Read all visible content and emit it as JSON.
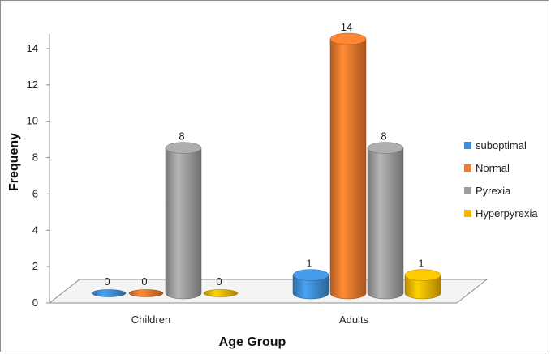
{
  "chart_data": {
    "type": "bar",
    "categories": [
      "Children",
      "Adults"
    ],
    "series": [
      {
        "name": "suboptimal",
        "values": [
          0,
          1
        ],
        "color": "#3f8fd6"
      },
      {
        "name": "Normal",
        "values": [
          0,
          14
        ],
        "color": "#f07a2e"
      },
      {
        "name": "Pyrexia",
        "values": [
          8,
          8
        ],
        "color": "#9e9e9e"
      },
      {
        "name": "Hyperpyrexia",
        "values": [
          0,
          1
        ],
        "color": "#f5b800"
      }
    ],
    "ylim": [
      0,
      14
    ],
    "yticks": [
      0,
      2,
      4,
      6,
      8,
      10,
      12,
      14
    ],
    "xlabel": "Age Group",
    "ylabel": "Frequeny",
    "legend_position": "right",
    "data_labels": true,
    "grid": false
  }
}
